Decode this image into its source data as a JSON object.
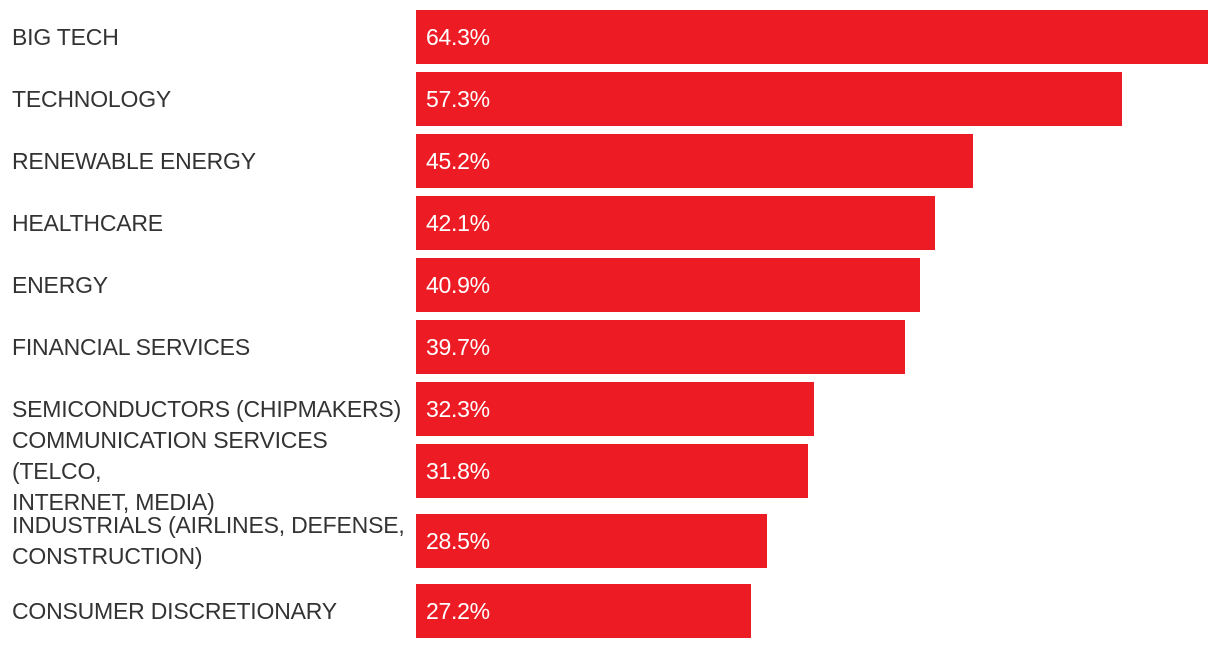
{
  "colors": {
    "bar": "#ED1C24",
    "label": "#333333",
    "value_text": "#FFFFFF",
    "background": "#FFFFFF"
  },
  "chart_data": {
    "type": "bar",
    "orientation": "horizontal",
    "title": "",
    "xlabel": "",
    "ylabel": "",
    "grid": false,
    "legend": "none",
    "xlim": [
      0,
      64.3
    ],
    "categories": [
      "BIG TECH",
      "TECHNOLOGY",
      "RENEWABLE ENERGY",
      "HEALTHCARE",
      "ENERGY",
      "FINANCIAL SERVICES",
      "SEMICONDUCTORS (CHIPMAKERS)",
      "COMMUNICATION SERVICES (TELCO,\nINTERNET, MEDIA)",
      "INDUSTRIALS (AIRLINES, DEFENSE,\nCONSTRUCTION)",
      "CONSUMER DISCRETIONARY"
    ],
    "values": [
      64.3,
      57.3,
      45.2,
      42.1,
      40.9,
      39.7,
      32.3,
      31.8,
      28.5,
      27.2
    ],
    "data_labels": [
      "64.3%",
      "57.3%",
      "45.2%",
      "42.1%",
      "40.9%",
      "39.7%",
      "32.3%",
      "31.8%",
      "28.5%",
      "27.2%"
    ]
  }
}
